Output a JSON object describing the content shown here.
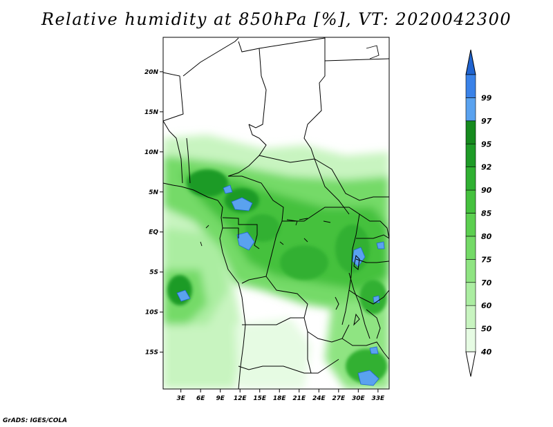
{
  "title": "Relative humidity at 850hPa [%], VT: 2020042300",
  "credit": "GrADS: IGES/COLA",
  "map": {
    "lat_ticks": [
      {
        "label": "20N",
        "value": 20
      },
      {
        "label": "15N",
        "value": 15
      },
      {
        "label": "10N",
        "value": 10
      },
      {
        "label": "5N",
        "value": 5
      },
      {
        "label": "EQ",
        "value": 0
      },
      {
        "label": "5S",
        "value": -5
      },
      {
        "label": "10S",
        "value": -10
      },
      {
        "label": "15S",
        "value": -15
      }
    ],
    "lon_ticks": [
      {
        "label": "3E",
        "value": 3
      },
      {
        "label": "6E",
        "value": 6
      },
      {
        "label": "9E",
        "value": 9
      },
      {
        "label": "12E",
        "value": 12
      },
      {
        "label": "15E",
        "value": 15
      },
      {
        "label": "18E",
        "value": 18
      },
      {
        "label": "21E",
        "value": 21
      },
      {
        "label": "24E",
        "value": 24
      },
      {
        "label": "27E",
        "value": 27
      },
      {
        "label": "30E",
        "value": 30
      },
      {
        "label": "33E",
        "value": 33
      }
    ],
    "lon_range": [
      0.3,
      34.7
    ],
    "lat_range": [
      -19.6,
      24.3
    ]
  },
  "colorbar": {
    "labels": [
      "40",
      "50",
      "60",
      "70",
      "75",
      "80",
      "85",
      "90",
      "92",
      "95",
      "97",
      "99"
    ],
    "colors": [
      "#ffffff",
      "#e6fbe3",
      "#c8f4c0",
      "#abeda1",
      "#8fe482",
      "#74da67",
      "#5ccf50",
      "#45c13e",
      "#30b032",
      "#1e9b27",
      "#168a1e",
      "#5aa2ef",
      "#3a82e8",
      "#2064d0"
    ]
  }
}
